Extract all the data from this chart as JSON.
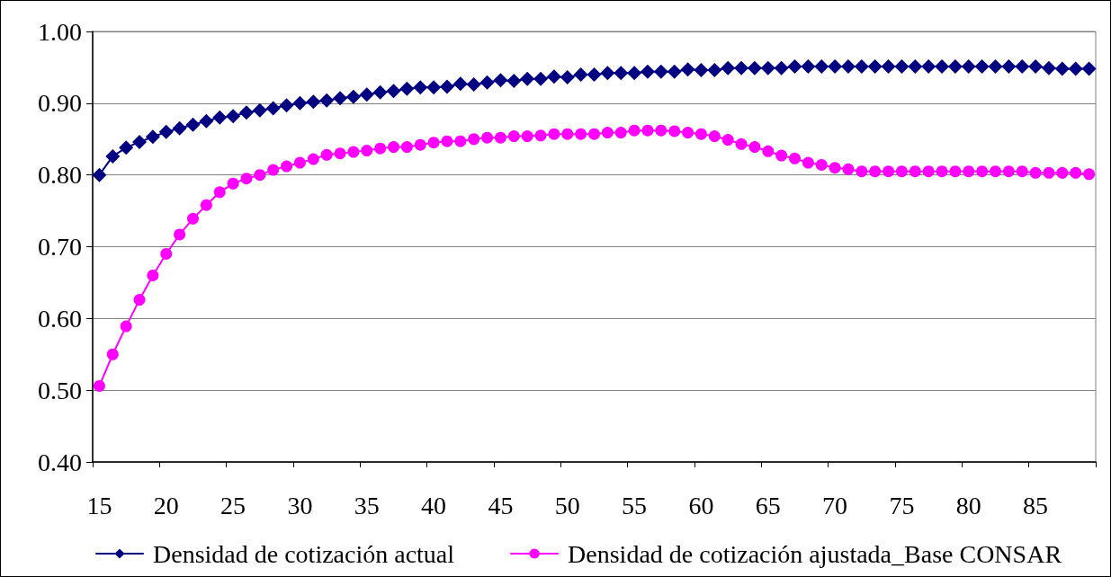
{
  "chart_data": {
    "type": "line",
    "categories": [
      "15",
      null,
      null,
      null,
      null,
      "20",
      null,
      null,
      null,
      null,
      "25",
      null,
      null,
      null,
      null,
      "30",
      null,
      null,
      null,
      null,
      "35",
      null,
      null,
      null,
      null,
      "40",
      null,
      null,
      null,
      null,
      "45",
      null,
      null,
      null,
      null,
      "50",
      null,
      null,
      null,
      null,
      "55",
      null,
      null,
      null,
      null,
      "60",
      null,
      null,
      null,
      null,
      "65",
      null,
      null,
      null,
      null,
      "70",
      null,
      null,
      null,
      null,
      "75",
      null,
      null,
      null,
      null,
      "80",
      null,
      null,
      null,
      null,
      "85",
      null,
      null,
      null,
      null
    ],
    "ylim": [
      0.4,
      1.0
    ],
    "yticks": [
      {
        "value": 0.4,
        "label": "0.40"
      },
      {
        "value": 0.5,
        "label": "0.50"
      },
      {
        "value": 0.6,
        "label": "0.60"
      },
      {
        "value": 0.7,
        "label": "0.70"
      },
      {
        "value": 0.8,
        "label": "0.80"
      },
      {
        "value": 0.9,
        "label": "0.90"
      },
      {
        "value": 1.0,
        "label": "1.00"
      }
    ],
    "grid": "y",
    "legend": "bottom",
    "line_style": "solid",
    "series": [
      {
        "name": "Densidad de cotización actual",
        "color": "#000080",
        "marker": "diamond",
        "values": [
          0.8,
          0.826,
          0.838,
          0.846,
          0.853,
          0.86,
          0.865,
          0.87,
          0.875,
          0.88,
          0.882,
          0.887,
          0.89,
          0.893,
          0.897,
          0.9,
          0.902,
          0.904,
          0.907,
          0.909,
          0.912,
          0.915,
          0.917,
          0.92,
          0.922,
          0.922,
          0.923,
          0.927,
          0.926,
          0.929,
          0.932,
          0.931,
          0.934,
          0.934,
          0.937,
          0.936,
          0.94,
          0.94,
          0.942,
          0.942,
          0.942,
          0.944,
          0.944,
          0.944,
          0.947,
          0.946,
          0.946,
          0.949,
          0.949,
          0.949,
          0.949,
          0.949,
          0.951,
          0.951,
          0.951,
          0.951,
          0.951,
          0.951,
          0.951,
          0.951,
          0.951,
          0.951,
          0.951,
          0.951,
          0.951,
          0.951,
          0.951,
          0.951,
          0.951,
          0.951,
          0.951,
          0.949,
          0.948,
          0.948,
          0.948
        ]
      },
      {
        "name": "Densidad de cotización ajustada_Base CONSAR",
        "color": "#ff00ff",
        "marker": "circle",
        "values": [
          0.506,
          0.55,
          0.589,
          0.626,
          0.66,
          0.69,
          0.717,
          0.739,
          0.758,
          0.776,
          0.788,
          0.795,
          0.8,
          0.807,
          0.812,
          0.817,
          0.822,
          0.828,
          0.83,
          0.832,
          0.834,
          0.837,
          0.839,
          0.839,
          0.842,
          0.845,
          0.847,
          0.847,
          0.85,
          0.852,
          0.852,
          0.854,
          0.854,
          0.855,
          0.857,
          0.857,
          0.857,
          0.857,
          0.859,
          0.859,
          0.862,
          0.862,
          0.862,
          0.861,
          0.859,
          0.857,
          0.854,
          0.849,
          0.843,
          0.839,
          0.833,
          0.827,
          0.823,
          0.817,
          0.814,
          0.81,
          0.808,
          0.805,
          0.805,
          0.805,
          0.805,
          0.805,
          0.805,
          0.805,
          0.805,
          0.805,
          0.805,
          0.805,
          0.805,
          0.805,
          0.803,
          0.803,
          0.803,
          0.803,
          0.801
        ]
      }
    ]
  }
}
